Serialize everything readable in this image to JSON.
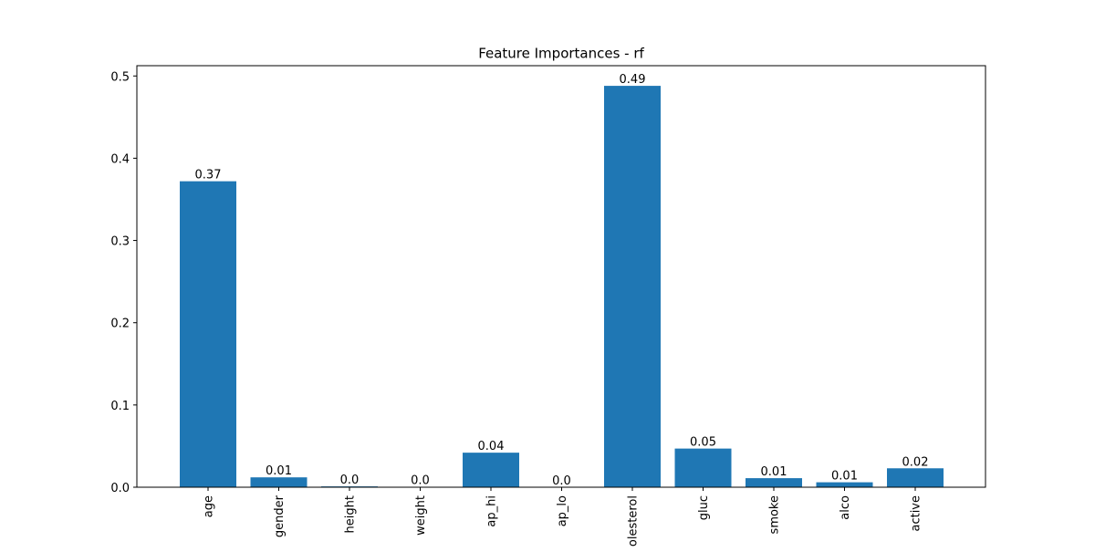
{
  "chart_data": {
    "type": "bar",
    "title": "Feature Importances - rf",
    "xlabel": "",
    "ylabel": "",
    "categories": [
      "age",
      "gender",
      "height",
      "weight",
      "ap_hi",
      "ap_lo",
      "cholesterol",
      "gluc",
      "smoke",
      "alco",
      "active"
    ],
    "values": [
      0.372,
      0.012,
      0.001,
      0.0003,
      0.042,
      0.0002,
      0.488,
      0.047,
      0.011,
      0.006,
      0.023
    ],
    "data_labels": [
      "0.37",
      "0.01",
      "0.0",
      "0.0",
      "0.04",
      "0.0",
      "0.49",
      "0.05",
      "0.01",
      "0.01",
      "0.02"
    ],
    "ylim": [
      0,
      0.5125
    ],
    "yticks": [
      0.0,
      0.1,
      0.2,
      0.3,
      0.4,
      0.5
    ],
    "ytick_labels": [
      "0.0",
      "0.1",
      "0.2",
      "0.3",
      "0.4",
      "0.5"
    ],
    "grid": false,
    "legend": "none",
    "bar_color": "#1f77b4"
  }
}
